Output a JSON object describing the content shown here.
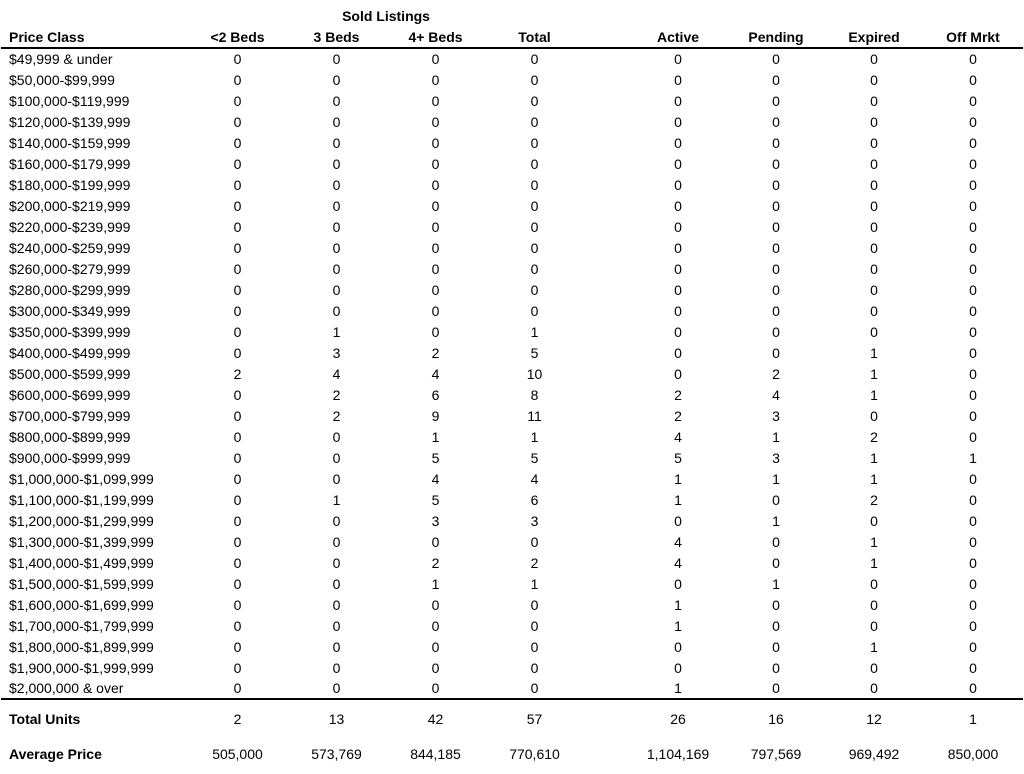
{
  "table": {
    "group_header": "Sold Listings",
    "columns": [
      "Price Class",
      "<2 Beds",
      "3 Beds",
      "4+ Beds",
      "Total",
      "Active",
      "Pending",
      "Expired",
      "Off Mrkt"
    ],
    "rows": [
      {
        "label": "$49,999 & under",
        "values": [
          0,
          0,
          0,
          0,
          0,
          0,
          0,
          0
        ]
      },
      {
        "label": "$50,000-$99,999",
        "values": [
          0,
          0,
          0,
          0,
          0,
          0,
          0,
          0
        ]
      },
      {
        "label": "$100,000-$119,999",
        "values": [
          0,
          0,
          0,
          0,
          0,
          0,
          0,
          0
        ]
      },
      {
        "label": "$120,000-$139,999",
        "values": [
          0,
          0,
          0,
          0,
          0,
          0,
          0,
          0
        ]
      },
      {
        "label": "$140,000-$159,999",
        "values": [
          0,
          0,
          0,
          0,
          0,
          0,
          0,
          0
        ]
      },
      {
        "label": "$160,000-$179,999",
        "values": [
          0,
          0,
          0,
          0,
          0,
          0,
          0,
          0
        ]
      },
      {
        "label": "$180,000-$199,999",
        "values": [
          0,
          0,
          0,
          0,
          0,
          0,
          0,
          0
        ]
      },
      {
        "label": "$200,000-$219,999",
        "values": [
          0,
          0,
          0,
          0,
          0,
          0,
          0,
          0
        ]
      },
      {
        "label": "$220,000-$239,999",
        "values": [
          0,
          0,
          0,
          0,
          0,
          0,
          0,
          0
        ]
      },
      {
        "label": "$240,000-$259,999",
        "values": [
          0,
          0,
          0,
          0,
          0,
          0,
          0,
          0
        ]
      },
      {
        "label": "$260,000-$279,999",
        "values": [
          0,
          0,
          0,
          0,
          0,
          0,
          0,
          0
        ]
      },
      {
        "label": "$280,000-$299,999",
        "values": [
          0,
          0,
          0,
          0,
          0,
          0,
          0,
          0
        ]
      },
      {
        "label": "$300,000-$349,999",
        "values": [
          0,
          0,
          0,
          0,
          0,
          0,
          0,
          0
        ]
      },
      {
        "label": "$350,000-$399,999",
        "values": [
          0,
          1,
          0,
          1,
          0,
          0,
          0,
          0
        ]
      },
      {
        "label": "$400,000-$499,999",
        "values": [
          0,
          3,
          2,
          5,
          0,
          0,
          1,
          0
        ]
      },
      {
        "label": "$500,000-$599,999",
        "values": [
          2,
          4,
          4,
          10,
          0,
          2,
          1,
          0
        ]
      },
      {
        "label": "$600,000-$699,999",
        "values": [
          0,
          2,
          6,
          8,
          2,
          4,
          1,
          0
        ]
      },
      {
        "label": "$700,000-$799,999",
        "values": [
          0,
          2,
          9,
          11,
          2,
          3,
          0,
          0
        ]
      },
      {
        "label": "$800,000-$899,999",
        "values": [
          0,
          0,
          1,
          1,
          4,
          1,
          2,
          0
        ]
      },
      {
        "label": "$900,000-$999,999",
        "values": [
          0,
          0,
          5,
          5,
          5,
          3,
          1,
          1
        ]
      },
      {
        "label": "$1,000,000-$1,099,999",
        "values": [
          0,
          0,
          4,
          4,
          1,
          1,
          1,
          0
        ]
      },
      {
        "label": "$1,100,000-$1,199,999",
        "values": [
          0,
          1,
          5,
          6,
          1,
          0,
          2,
          0
        ]
      },
      {
        "label": "$1,200,000-$1,299,999",
        "values": [
          0,
          0,
          3,
          3,
          0,
          1,
          0,
          0
        ]
      },
      {
        "label": "$1,300,000-$1,399,999",
        "values": [
          0,
          0,
          0,
          0,
          4,
          0,
          1,
          0
        ]
      },
      {
        "label": "$1,400,000-$1,499,999",
        "values": [
          0,
          0,
          2,
          2,
          4,
          0,
          1,
          0
        ]
      },
      {
        "label": "$1,500,000-$1,599,999",
        "values": [
          0,
          0,
          1,
          1,
          0,
          1,
          0,
          0
        ]
      },
      {
        "label": "$1,600,000-$1,699,999",
        "values": [
          0,
          0,
          0,
          0,
          1,
          0,
          0,
          0
        ]
      },
      {
        "label": "$1,700,000-$1,799,999",
        "values": [
          0,
          0,
          0,
          0,
          1,
          0,
          0,
          0
        ]
      },
      {
        "label": "$1,800,000-$1,899,999",
        "values": [
          0,
          0,
          0,
          0,
          0,
          0,
          1,
          0
        ]
      },
      {
        "label": "$1,900,000-$1,999,999",
        "values": [
          0,
          0,
          0,
          0,
          0,
          0,
          0,
          0
        ]
      },
      {
        "label": "$2,000,000 & over",
        "values": [
          0,
          0,
          0,
          0,
          1,
          0,
          0,
          0
        ]
      }
    ],
    "footer": {
      "total_units": {
        "label": "Total Units",
        "values": [
          "2",
          "13",
          "42",
          "57",
          "26",
          "16",
          "12",
          "1"
        ]
      },
      "average_price": {
        "label": "Average Price",
        "values": [
          "505,000",
          "573,769",
          "844,185",
          "770,610",
          "1,104,169",
          "797,569",
          "969,492",
          "850,000"
        ]
      }
    }
  },
  "colors": {
    "text": "#000000",
    "rule": "#000000",
    "background": "#ffffff"
  }
}
